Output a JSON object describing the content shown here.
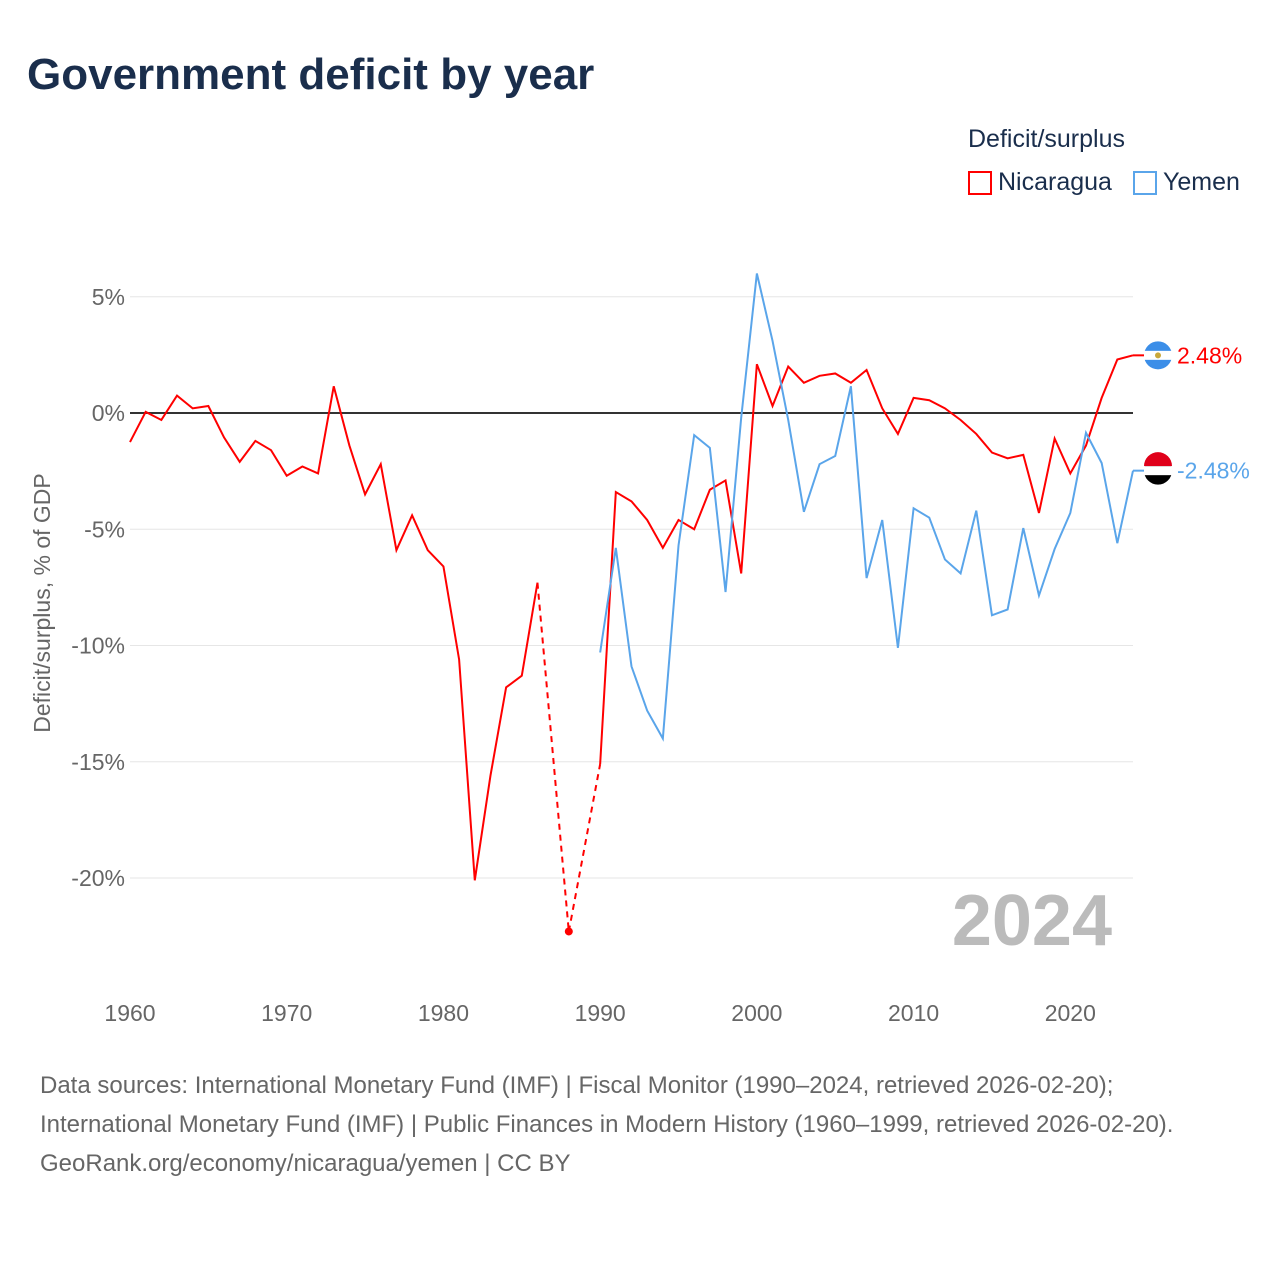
{
  "title": "Government deficit by year",
  "legend": {
    "title": "Deficit/surplus",
    "items": [
      {
        "name": "Nicaragua",
        "color": "#ff0000"
      },
      {
        "name": "Yemen",
        "color": "#5aa5ea"
      }
    ]
  },
  "footer": {
    "sources": "Data sources: International Monetary Fund (IMF) | Fiscal Monitor (1990–2024, retrieved 2026-02-20); International Monetary Fund (IMF) | Public Finances in Modern History (1960–1999, retrieved 2026-02-20).",
    "credit": "GeoRank.org/economy/nicaragua/yemen | CC BY"
  },
  "chart_data": {
    "type": "line",
    "title": "Government deficit by year",
    "ylabel": "Deficit/surplus, % of GDP",
    "xlabel": "",
    "xlim": [
      1960,
      2024
    ],
    "ylim": [
      -23,
      6.5
    ],
    "x_ticks": [
      1960,
      1970,
      1980,
      1990,
      2000,
      2010,
      2020
    ],
    "y_ticks": [
      {
        "v": 5,
        "label": "5%"
      },
      {
        "v": 0,
        "label": "0%"
      },
      {
        "v": -5,
        "label": "-5%"
      },
      {
        "v": -10,
        "label": "-10%"
      },
      {
        "v": -15,
        "label": "-15%"
      },
      {
        "v": -20,
        "label": "-20%"
      }
    ],
    "year_watermark": "2024",
    "series": [
      {
        "name": "Nicaragua",
        "color": "#ff0000",
        "end_label": "2.48%",
        "start_year": 1960,
        "values": [
          -1.25,
          0.05,
          -0.3,
          0.75,
          0.2,
          0.3,
          -1.05,
          -2.1,
          -1.2,
          -1.6,
          -2.7,
          -2.3,
          -2.6,
          1.15,
          -1.4,
          -3.5,
          -2.2,
          -5.9,
          -4.4,
          -5.9,
          -6.6,
          -10.6,
          -20.1,
          -15.6,
          -11.8,
          -11.3,
          -7.3,
          null,
          -22.3,
          null,
          -15.1,
          -3.4,
          -3.8,
          -4.6,
          -5.8,
          -4.6,
          -5.0,
          -3.3,
          -2.9,
          -6.9,
          2.1,
          0.3,
          2.0,
          1.3,
          1.6,
          1.7,
          1.3,
          1.85,
          0.2,
          -0.9,
          0.65,
          0.55,
          0.2,
          -0.3,
          -0.9,
          -1.7,
          -1.95,
          -1.8,
          -4.3,
          -1.1,
          -2.6,
          -1.4,
          0.65,
          2.3,
          2.48
        ]
      },
      {
        "name": "Yemen",
        "color": "#5aa5ea",
        "end_label": "-2.48%",
        "start_year": 1990,
        "values": [
          -10.3,
          -5.8,
          -10.9,
          -12.8,
          -14.0,
          -5.7,
          -0.95,
          -1.5,
          -7.7,
          -0.2,
          6.0,
          3.1,
          -0.3,
          -4.25,
          -2.2,
          -1.85,
          1.15,
          -7.1,
          -4.6,
          -10.1,
          -4.1,
          -4.5,
          -6.3,
          -6.9,
          -4.2,
          -8.7,
          -8.45,
          -4.95,
          -7.85,
          -5.85,
          -4.3,
          -0.85,
          -2.15,
          -5.6,
          -2.48
        ]
      }
    ]
  }
}
